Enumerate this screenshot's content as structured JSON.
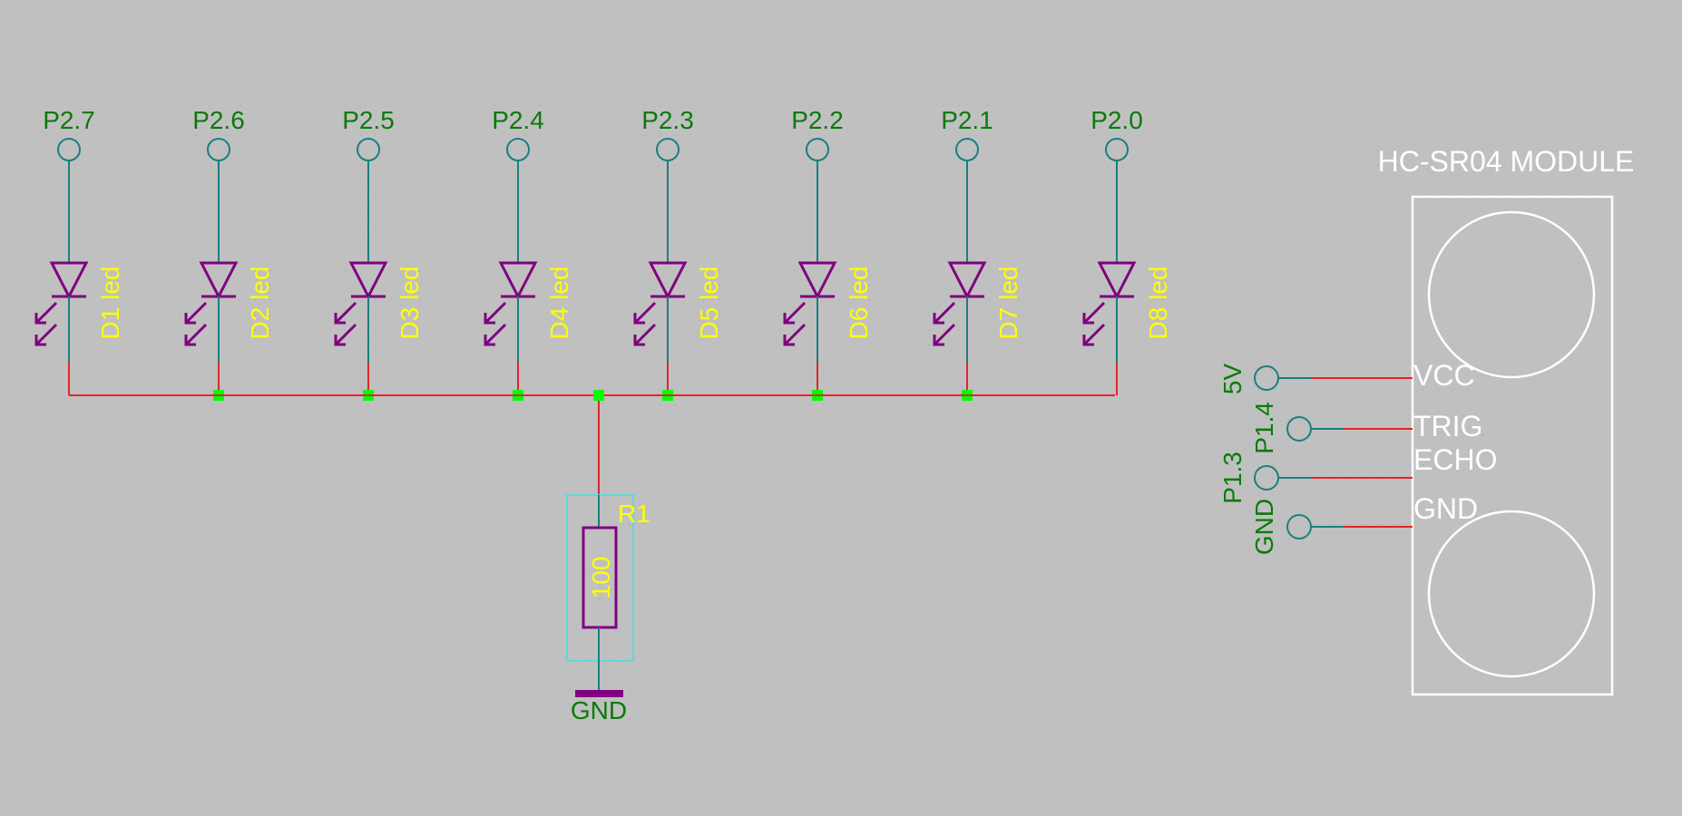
{
  "colors": {
    "background": "#c0c0c0",
    "grid_dot": "#b3b3b3",
    "net_wire": "#e3242b",
    "pin_wire": "#1a7f80",
    "component": "#800080",
    "net_label": "#0a7a0a",
    "part_label": "#ffff00",
    "junction": "#00ff00",
    "module": "#ffffff",
    "bbox": "#40e0e0"
  },
  "leds": [
    {
      "port": "P2.7",
      "ref": "D1 led"
    },
    {
      "port": "P2.6",
      "ref": "D2 led"
    },
    {
      "port": "P2.5",
      "ref": "D3 led"
    },
    {
      "port": "P2.4",
      "ref": "D4 led"
    },
    {
      "port": "P2.3",
      "ref": "D5 led"
    },
    {
      "port": "P2.2",
      "ref": "D6 led"
    },
    {
      "port": "P2.1",
      "ref": "D7 led"
    },
    {
      "port": "P2.0",
      "ref": "D8 led"
    }
  ],
  "resistor": {
    "ref": "R1",
    "value": "100",
    "ground_label": "GND"
  },
  "module": {
    "title": "HC-SR04 MODULE",
    "pins": [
      {
        "name": "VCC",
        "net": "5V"
      },
      {
        "name": "TRIG",
        "net": "P1.4"
      },
      {
        "name": "ECHO",
        "net": "P1.3"
      },
      {
        "name": "GND",
        "net": "GND"
      }
    ]
  }
}
